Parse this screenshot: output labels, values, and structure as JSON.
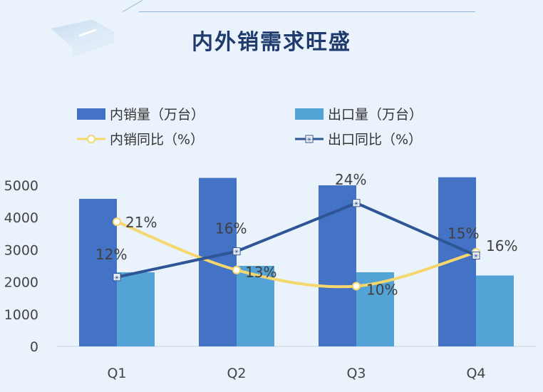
{
  "header": {
    "title": "内外销需求旺盛"
  },
  "colors": {
    "domestic_bar": "#4472c4",
    "export_bar": "#53a3d6",
    "domestic_line": "#f5d76e",
    "export_line": "#2e5595",
    "background": "#eaf3fb"
  },
  "legend": {
    "items": [
      {
        "label": "内销量（万台）",
        "kind": "bar",
        "color": "#4472c4"
      },
      {
        "label": "出口量（万台）",
        "kind": "bar",
        "color": "#53a3d6"
      },
      {
        "label": "内销同比（%）",
        "kind": "line-circle",
        "color": "#f5d76e"
      },
      {
        "label": "出口同比（%）",
        "kind": "line-star",
        "color": "#2e5595"
      }
    ]
  },
  "chart_data": {
    "type": "bar",
    "categories": [
      "Q1",
      "Q2",
      "Q3",
      "Q4"
    ],
    "ylim": [
      0,
      5000
    ],
    "yticks": [
      0,
      1000,
      2000,
      3000,
      4000,
      5000
    ],
    "series": [
      {
        "name": "内销量（万台）",
        "type": "bar",
        "values": [
          4580,
          5230,
          5000,
          5250
        ]
      },
      {
        "name": "出口量（万台）",
        "type": "bar",
        "values": [
          2300,
          2500,
          2300,
          2200
        ]
      },
      {
        "name": "内销同比（%）",
        "type": "line",
        "plot_values": [
          3870,
          2370,
          1870,
          2920
        ],
        "labels": [
          "21%",
          "13%",
          "10%",
          "16%"
        ]
      },
      {
        "name": "出口同比（%）",
        "type": "line",
        "plot_values": [
          2150,
          2950,
          4450,
          2820
        ],
        "labels": [
          "12%",
          "16%",
          "24%",
          "15%"
        ]
      }
    ]
  }
}
